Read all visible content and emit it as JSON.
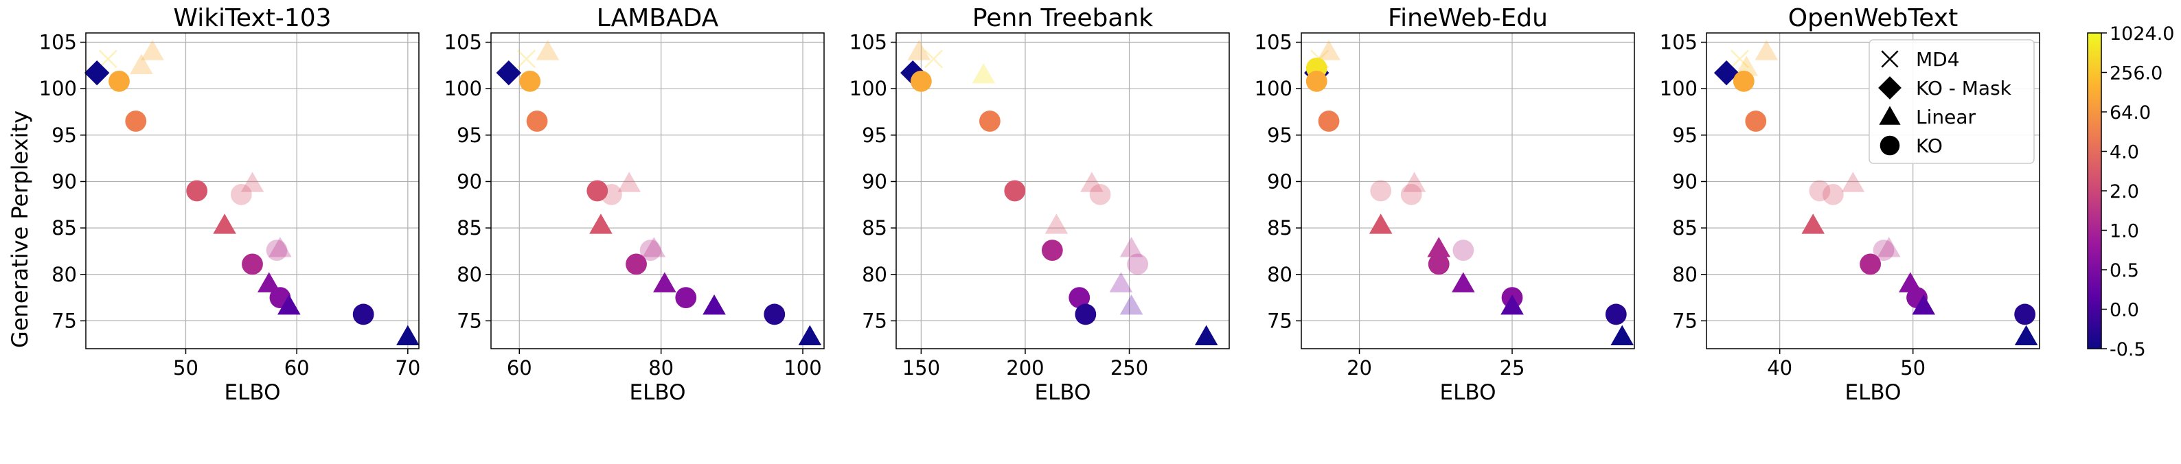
{
  "figure": {
    "ylabel": "Generative Perplexity"
  },
  "colorbar": {
    "tick_labels": [
      "1024.0",
      "256.0",
      "64.0",
      "4.0",
      "2.0",
      "1.0",
      "0.5",
      "0.0",
      "-0.5"
    ],
    "colormap": [
      "#0d0887",
      "#5c01a6",
      "#9c179e",
      "#cc4778",
      "#ed7953",
      "#fdb42f",
      "#f0f921"
    ]
  },
  "legend": {
    "entries": [
      {
        "label": "MD4",
        "marker": "x"
      },
      {
        "label": "KO - Mask",
        "marker": "diamond"
      },
      {
        "label": "Linear",
        "marker": "triangle"
      },
      {
        "label": "KO",
        "marker": "circle"
      }
    ]
  },
  "chart_data": [
    {
      "type": "scatter",
      "title": "WikiText-103",
      "xlabel": "ELBO",
      "xlim": [
        41,
        71
      ],
      "ylim": [
        72,
        106
      ],
      "xticks": [
        50,
        60,
        70
      ],
      "yticks": [
        75,
        80,
        85,
        90,
        95,
        100,
        105
      ],
      "points": [
        {
          "m": "x",
          "x": 43,
          "y": 103.2,
          "c": 0.9,
          "a": 0.3
        },
        {
          "m": "triangle",
          "x": 47,
          "y": 104.0,
          "c": 0.8,
          "a": 0.3
        },
        {
          "m": "triangle",
          "x": 46,
          "y": 102.5,
          "c": 0.8,
          "a": 0.3
        },
        {
          "m": "diamond",
          "x": 42,
          "y": 101.7,
          "c": 0.0,
          "a": 1
        },
        {
          "m": "circle",
          "x": 44,
          "y": 100.8,
          "c": 0.8,
          "a": 1
        },
        {
          "m": "circle",
          "x": 45.5,
          "y": 96.5,
          "c": 0.68,
          "a": 1
        },
        {
          "m": "triangle",
          "x": 56,
          "y": 89.8,
          "c": 0.55,
          "a": 0.3
        },
        {
          "m": "circle",
          "x": 51,
          "y": 89.0,
          "c": 0.55,
          "a": 1
        },
        {
          "m": "circle",
          "x": 55,
          "y": 88.6,
          "c": 0.55,
          "a": 0.3
        },
        {
          "m": "triangle",
          "x": 53.5,
          "y": 85.3,
          "c": 0.55,
          "a": 1
        },
        {
          "m": "triangle",
          "x": 58.5,
          "y": 82.8,
          "c": 0.42,
          "a": 0.3
        },
        {
          "m": "circle",
          "x": 58.2,
          "y": 82.6,
          "c": 0.42,
          "a": 0.3
        },
        {
          "m": "circle",
          "x": 56,
          "y": 81.1,
          "c": 0.4,
          "a": 1
        },
        {
          "m": "triangle",
          "x": 57.5,
          "y": 79.0,
          "c": 0.28,
          "a": 1
        },
        {
          "m": "circle",
          "x": 58.5,
          "y": 77.5,
          "c": 0.28,
          "a": 1
        },
        {
          "m": "triangle",
          "x": 59.3,
          "y": 76.6,
          "c": 0.15,
          "a": 1
        },
        {
          "m": "circle",
          "x": 66,
          "y": 75.7,
          "c": 0.05,
          "a": 1
        },
        {
          "m": "triangle",
          "x": 70,
          "y": 73.3,
          "c": 0.0,
          "a": 1
        }
      ]
    },
    {
      "type": "scatter",
      "title": "LAMBADA",
      "xlabel": "ELBO",
      "xlim": [
        56,
        103
      ],
      "ylim": [
        72,
        106
      ],
      "xticks": [
        60,
        80,
        100
      ],
      "yticks": [
        75,
        80,
        85,
        90,
        95,
        100,
        105
      ],
      "points": [
        {
          "m": "x",
          "x": 61,
          "y": 103.2,
          "c": 0.9,
          "a": 0.3
        },
        {
          "m": "triangle",
          "x": 64,
          "y": 104.0,
          "c": 0.8,
          "a": 0.3
        },
        {
          "m": "diamond",
          "x": 58.5,
          "y": 101.7,
          "c": 0.0,
          "a": 1
        },
        {
          "m": "circle",
          "x": 61.5,
          "y": 100.8,
          "c": 0.8,
          "a": 1
        },
        {
          "m": "circle",
          "x": 62.5,
          "y": 96.5,
          "c": 0.68,
          "a": 1
        },
        {
          "m": "triangle",
          "x": 75.5,
          "y": 89.8,
          "c": 0.55,
          "a": 0.3
        },
        {
          "m": "circle",
          "x": 71,
          "y": 89.0,
          "c": 0.55,
          "a": 1
        },
        {
          "m": "circle",
          "x": 73,
          "y": 88.6,
          "c": 0.55,
          "a": 0.3
        },
        {
          "m": "triangle",
          "x": 71.5,
          "y": 85.3,
          "c": 0.55,
          "a": 1
        },
        {
          "m": "triangle",
          "x": 79,
          "y": 82.8,
          "c": 0.42,
          "a": 0.3
        },
        {
          "m": "circle",
          "x": 78.5,
          "y": 82.6,
          "c": 0.42,
          "a": 0.3
        },
        {
          "m": "circle",
          "x": 76.5,
          "y": 81.1,
          "c": 0.4,
          "a": 1
        },
        {
          "m": "triangle",
          "x": 80.5,
          "y": 79.0,
          "c": 0.28,
          "a": 1
        },
        {
          "m": "circle",
          "x": 83.5,
          "y": 77.5,
          "c": 0.28,
          "a": 1
        },
        {
          "m": "triangle",
          "x": 87.5,
          "y": 76.6,
          "c": 0.15,
          "a": 1
        },
        {
          "m": "circle",
          "x": 96,
          "y": 75.7,
          "c": 0.05,
          "a": 1
        },
        {
          "m": "triangle",
          "x": 101,
          "y": 73.3,
          "c": 0.0,
          "a": 1
        }
      ]
    },
    {
      "type": "scatter",
      "title": "Penn Treebank",
      "xlabel": "ELBO",
      "xlim": [
        138,
        298
      ],
      "ylim": [
        72,
        106
      ],
      "xticks": [
        150,
        200,
        250
      ],
      "yticks": [
        75,
        80,
        85,
        90,
        95,
        100,
        105
      ],
      "points": [
        {
          "m": "x",
          "x": 156,
          "y": 103.2,
          "c": 0.9,
          "a": 0.3
        },
        {
          "m": "triangle",
          "x": 149,
          "y": 104.0,
          "c": 0.8,
          "a": 0.3
        },
        {
          "m": "triangle",
          "x": 180,
          "y": 101.5,
          "c": 0.95,
          "a": 0.3
        },
        {
          "m": "diamond",
          "x": 146,
          "y": 101.7,
          "c": 0.0,
          "a": 1
        },
        {
          "m": "circle",
          "x": 150,
          "y": 100.8,
          "c": 0.8,
          "a": 1
        },
        {
          "m": "circle",
          "x": 183,
          "y": 96.5,
          "c": 0.68,
          "a": 1
        },
        {
          "m": "triangle",
          "x": 232,
          "y": 89.8,
          "c": 0.55,
          "a": 0.3
        },
        {
          "m": "circle",
          "x": 195,
          "y": 89.0,
          "c": 0.55,
          "a": 1
        },
        {
          "m": "circle",
          "x": 236,
          "y": 88.6,
          "c": 0.55,
          "a": 0.3
        },
        {
          "m": "triangle",
          "x": 215,
          "y": 85.3,
          "c": 0.55,
          "a": 0.3
        },
        {
          "m": "triangle",
          "x": 251,
          "y": 82.8,
          "c": 0.42,
          "a": 0.3
        },
        {
          "m": "circle",
          "x": 213,
          "y": 82.6,
          "c": 0.4,
          "a": 1
        },
        {
          "m": "circle",
          "x": 254,
          "y": 81.1,
          "c": 0.4,
          "a": 0.3
        },
        {
          "m": "triangle",
          "x": 246,
          "y": 79.0,
          "c": 0.28,
          "a": 0.3
        },
        {
          "m": "circle",
          "x": 226,
          "y": 77.5,
          "c": 0.28,
          "a": 1
        },
        {
          "m": "triangle",
          "x": 251,
          "y": 76.6,
          "c": 0.15,
          "a": 0.3
        },
        {
          "m": "circle",
          "x": 229,
          "y": 75.7,
          "c": 0.05,
          "a": 1
        },
        {
          "m": "triangle",
          "x": 287,
          "y": 73.3,
          "c": 0.0,
          "a": 1
        }
      ]
    },
    {
      "type": "scatter",
      "title": "FineWeb-Edu",
      "xlabel": "ELBO",
      "xlim": [
        18.1,
        29.0
      ],
      "ylim": [
        72,
        106
      ],
      "xticks": [
        20,
        25
      ],
      "yticks": [
        75,
        80,
        85,
        90,
        95,
        100,
        105
      ],
      "points": [
        {
          "m": "x",
          "x": 18.7,
          "y": 103.2,
          "c": 0.9,
          "a": 0.3
        },
        {
          "m": "triangle",
          "x": 19.0,
          "y": 104.0,
          "c": 0.8,
          "a": 0.3
        },
        {
          "m": "diamond",
          "x": 18.6,
          "y": 101.7,
          "c": 0.0,
          "a": 1
        },
        {
          "m": "circle",
          "x": 18.6,
          "y": 102.2,
          "c": 0.95,
          "a": 1
        },
        {
          "m": "circle",
          "x": 18.6,
          "y": 100.8,
          "c": 0.8,
          "a": 1
        },
        {
          "m": "circle",
          "x": 19.0,
          "y": 96.5,
          "c": 0.68,
          "a": 1
        },
        {
          "m": "triangle",
          "x": 21.8,
          "y": 89.8,
          "c": 0.55,
          "a": 0.3
        },
        {
          "m": "circle",
          "x": 20.7,
          "y": 89.0,
          "c": 0.55,
          "a": 0.3
        },
        {
          "m": "circle",
          "x": 21.7,
          "y": 88.6,
          "c": 0.55,
          "a": 0.3
        },
        {
          "m": "triangle",
          "x": 20.7,
          "y": 85.3,
          "c": 0.55,
          "a": 1
        },
        {
          "m": "triangle",
          "x": 22.6,
          "y": 82.8,
          "c": 0.4,
          "a": 1
        },
        {
          "m": "circle",
          "x": 23.4,
          "y": 82.6,
          "c": 0.42,
          "a": 0.3
        },
        {
          "m": "circle",
          "x": 22.6,
          "y": 81.1,
          "c": 0.4,
          "a": 1
        },
        {
          "m": "triangle",
          "x": 23.4,
          "y": 79.0,
          "c": 0.28,
          "a": 1
        },
        {
          "m": "circle",
          "x": 25.0,
          "y": 77.5,
          "c": 0.28,
          "a": 1
        },
        {
          "m": "triangle",
          "x": 25.0,
          "y": 76.6,
          "c": 0.15,
          "a": 1
        },
        {
          "m": "circle",
          "x": 28.4,
          "y": 75.7,
          "c": 0.05,
          "a": 1
        },
        {
          "m": "triangle",
          "x": 28.6,
          "y": 73.3,
          "c": 0.0,
          "a": 1
        }
      ]
    },
    {
      "type": "scatter",
      "title": "OpenWebText",
      "xlabel": "ELBO",
      "xlim": [
        34.5,
        59.5
      ],
      "ylim": [
        72,
        106
      ],
      "xticks": [
        40,
        50
      ],
      "yticks": [
        75,
        80,
        85,
        90,
        95,
        100,
        105
      ],
      "legend_position": "upper-right",
      "points": [
        {
          "m": "x",
          "x": 37,
          "y": 103.2,
          "c": 0.9,
          "a": 0.3
        },
        {
          "m": "triangle",
          "x": 39,
          "y": 104.0,
          "c": 0.8,
          "a": 0.3
        },
        {
          "m": "triangle",
          "x": 37.5,
          "y": 102.3,
          "c": 0.85,
          "a": 0.3
        },
        {
          "m": "diamond",
          "x": 36,
          "y": 101.7,
          "c": 0.0,
          "a": 1
        },
        {
          "m": "circle",
          "x": 37.3,
          "y": 100.8,
          "c": 0.8,
          "a": 1
        },
        {
          "m": "circle",
          "x": 38.2,
          "y": 96.5,
          "c": 0.68,
          "a": 1
        },
        {
          "m": "triangle",
          "x": 45.5,
          "y": 89.8,
          "c": 0.55,
          "a": 0.3
        },
        {
          "m": "circle",
          "x": 43,
          "y": 89.0,
          "c": 0.55,
          "a": 0.3
        },
        {
          "m": "circle",
          "x": 44,
          "y": 88.6,
          "c": 0.55,
          "a": 0.3
        },
        {
          "m": "triangle",
          "x": 42.5,
          "y": 85.3,
          "c": 0.55,
          "a": 1
        },
        {
          "m": "triangle",
          "x": 48.2,
          "y": 82.8,
          "c": 0.42,
          "a": 0.3
        },
        {
          "m": "circle",
          "x": 47.8,
          "y": 82.6,
          "c": 0.42,
          "a": 0.3
        },
        {
          "m": "circle",
          "x": 46.8,
          "y": 81.1,
          "c": 0.4,
          "a": 1
        },
        {
          "m": "triangle",
          "x": 49.8,
          "y": 79.0,
          "c": 0.28,
          "a": 1
        },
        {
          "m": "circle",
          "x": 50.3,
          "y": 77.5,
          "c": 0.28,
          "a": 1
        },
        {
          "m": "triangle",
          "x": 50.8,
          "y": 76.6,
          "c": 0.15,
          "a": 1
        },
        {
          "m": "circle",
          "x": 58.4,
          "y": 75.7,
          "c": 0.05,
          "a": 1
        },
        {
          "m": "triangle",
          "x": 58.5,
          "y": 73.3,
          "c": 0.0,
          "a": 1
        }
      ]
    }
  ]
}
